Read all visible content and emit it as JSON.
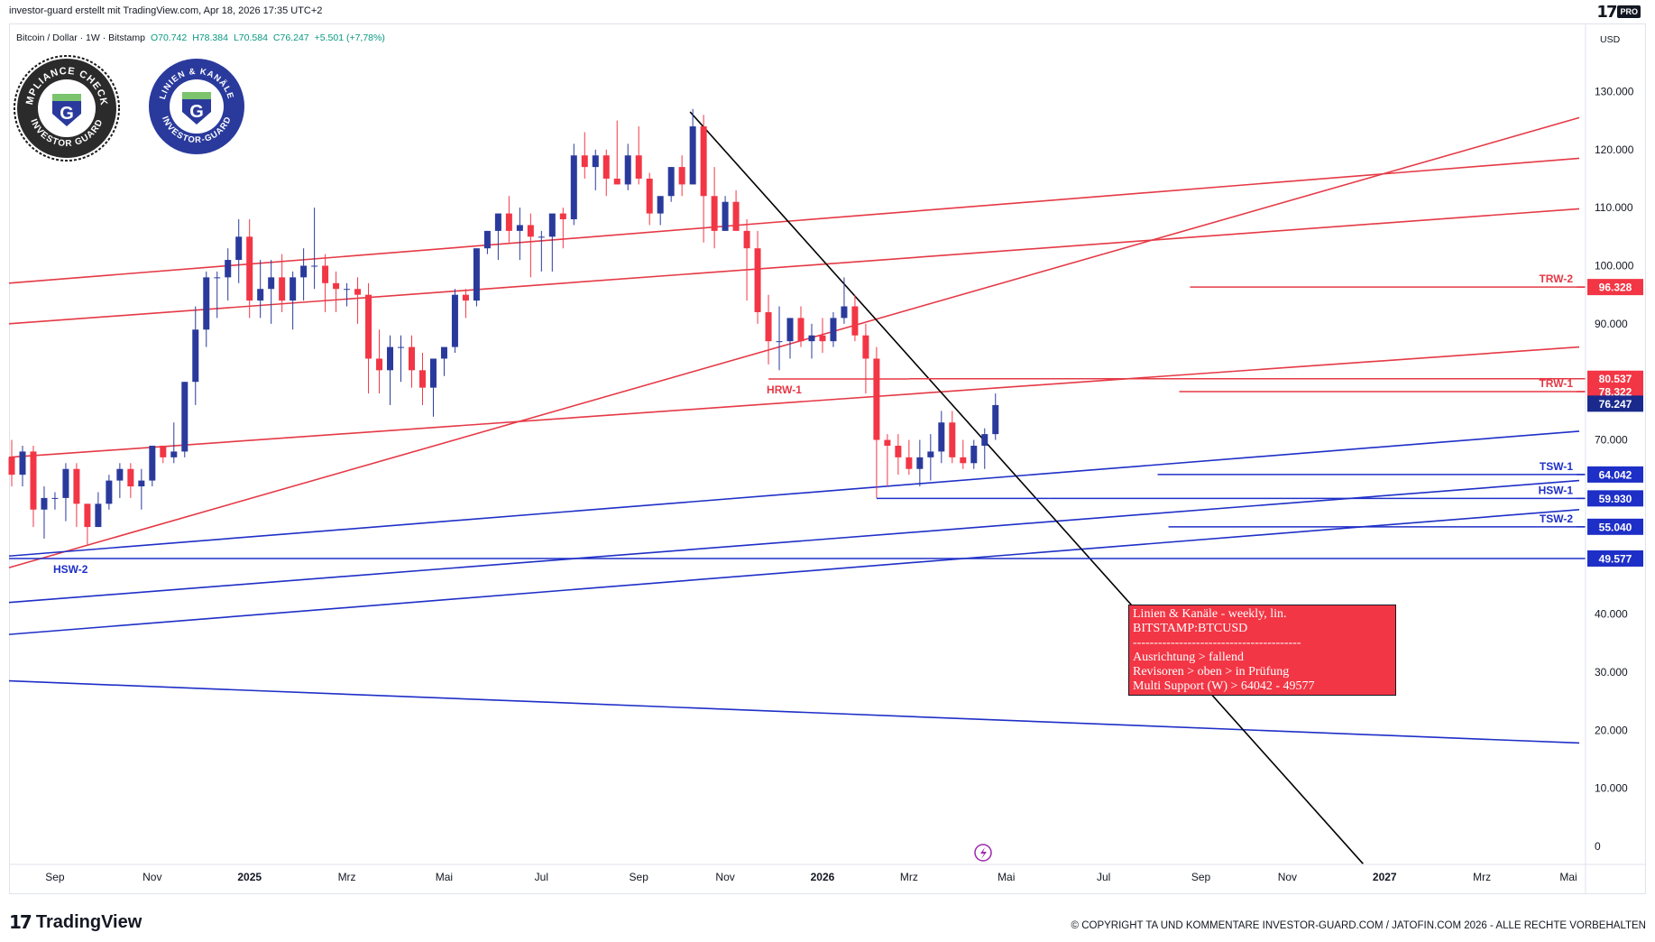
{
  "header": {
    "byline": "investor-guard erstellt mit TradingView.com, Apr 18, 2026 17:35 UTC+2",
    "brand_pro": "PRO"
  },
  "symbol": {
    "name": "Bitcoin / Dollar · 1W · Bitstamp",
    "open": "O70.742",
    "high": "H78.384",
    "low": "L70.584",
    "close": "C76.247",
    "change": "+5.501 (+7,78%)",
    "currency": "USD"
  },
  "badges": {
    "compliance_top": "COMPLIANCE CHECKED",
    "compliance_bottom": "INVESTOR GUARD",
    "linien_top": "LINIEN & KANÄLE",
    "linien_bottom": "INVESTOR-GUARD",
    "letter": "G"
  },
  "info_box": {
    "line1": "Linien & Kanäle - weekly, lin.",
    "line2": "BITSTAMP:BTCUSD",
    "separator": "----------------------------------------",
    "line3": "Ausrichtung > fallend",
    "line4": "Revisoren > oben > in Prüfung",
    "line5": "Multi Support (W) > 64042 - 49577"
  },
  "footer": {
    "brand": "TradingView",
    "copyright": "© COPYRIGHT TA UND KOMMENTARE INVESTOR-GUARD.COM / JATOFIN.COM 2026 - ALLE RECHTE VORBEHALTEN"
  },
  "colors": {
    "up": "#2a3a9c",
    "down": "#f23645",
    "resistance": "#e53945",
    "support": "#1e2fc7",
    "trendline": "#000000"
  },
  "chart_data": {
    "type": "candlestick",
    "y_axis_ticks": [
      "130.000",
      "120.000",
      "110.000",
      "100.000",
      "90.000",
      "80.000",
      "70.000",
      "40.000",
      "30.000",
      "20.000",
      "10.000",
      "0"
    ],
    "y_tick_values": [
      130000,
      120000,
      110000,
      100000,
      90000,
      80000,
      70000,
      40000,
      30000,
      20000,
      10000,
      0
    ],
    "ylim": [
      0,
      135000
    ],
    "x_axis_ticks": [
      "Sep",
      "Nov",
      "2025",
      "Mrz",
      "Mai",
      "Jul",
      "Sep",
      "Nov",
      "2026",
      "Mrz",
      "Mai",
      "Jul",
      "Sep",
      "Nov",
      "2027",
      "Mrz",
      "Mai"
    ],
    "x_tick_weeks": [
      4,
      13,
      22,
      31,
      40,
      49,
      58,
      66,
      75,
      83,
      92,
      101,
      110,
      118,
      127,
      136,
      144
    ],
    "x_range_weeks": [
      0,
      146
    ],
    "first_week": "2024-07-29",
    "candles": [
      [
        0,
        67,
        70,
        62,
        64
      ],
      [
        1,
        64,
        69,
        62,
        68
      ],
      [
        2,
        68,
        69,
        55,
        58
      ],
      [
        3,
        58,
        62,
        53,
        60
      ],
      [
        4,
        60,
        61,
        58,
        60
      ],
      [
        5,
        60,
        66,
        56,
        65
      ],
      [
        6,
        65,
        66,
        55,
        59
      ],
      [
        7,
        59,
        59,
        52,
        55
      ],
      [
        8,
        55,
        61,
        55,
        59
      ],
      [
        9,
        59,
        64,
        58,
        63
      ],
      [
        10,
        63,
        66,
        60,
        65
      ],
      [
        11,
        65,
        66,
        60,
        62
      ],
      [
        12,
        62,
        65,
        58,
        63
      ],
      [
        13,
        63,
        69,
        62,
        69
      ],
      [
        14,
        69,
        69,
        66,
        67
      ],
      [
        15,
        67,
        73,
        66,
        68
      ],
      [
        16,
        68,
        80,
        67,
        80
      ],
      [
        17,
        80,
        93,
        76,
        89
      ],
      [
        18,
        89,
        99,
        86,
        98
      ],
      [
        19,
        98,
        99,
        91,
        98
      ],
      [
        20,
        98,
        103,
        94,
        101
      ],
      [
        21,
        101,
        108,
        97,
        105
      ],
      [
        22,
        105,
        108,
        91,
        94
      ],
      [
        23,
        94,
        101,
        91,
        96
      ],
      [
        24,
        96,
        101,
        90,
        98
      ],
      [
        25,
        98,
        102,
        92,
        94
      ],
      [
        26,
        94,
        99,
        89,
        98
      ],
      [
        27,
        98,
        103,
        94,
        100
      ],
      [
        28,
        100,
        110,
        96,
        100
      ],
      [
        29,
        100,
        102,
        92,
        97
      ],
      [
        30,
        97,
        99,
        92,
        96
      ],
      [
        31,
        96,
        97,
        93,
        96
      ],
      [
        32,
        96,
        98,
        90,
        95
      ],
      [
        33,
        95,
        97,
        78,
        84
      ],
      [
        34,
        84,
        89,
        78,
        82
      ],
      [
        35,
        82,
        88,
        76,
        86
      ],
      [
        36,
        86,
        88,
        80,
        86
      ],
      [
        37,
        86,
        88,
        79,
        82
      ],
      [
        38,
        82,
        85,
        76,
        79
      ],
      [
        39,
        79,
        84,
        74,
        84
      ],
      [
        40,
        84,
        86,
        81,
        86
      ],
      [
        41,
        86,
        96,
        85,
        95
      ],
      [
        42,
        95,
        96,
        91,
        94
      ],
      [
        43,
        94,
        103,
        93,
        103
      ],
      [
        44,
        103,
        106,
        102,
        106
      ],
      [
        45,
        106,
        109,
        101,
        109
      ],
      [
        46,
        109,
        112,
        104,
        106
      ],
      [
        47,
        106,
        110,
        101,
        107
      ],
      [
        48,
        107,
        109,
        98,
        105
      ],
      [
        49,
        105,
        106,
        99,
        105
      ],
      [
        50,
        105,
        108,
        99,
        109
      ],
      [
        51,
        109,
        110,
        103,
        108
      ],
      [
        52,
        108,
        121,
        107,
        119
      ],
      [
        53,
        119,
        123,
        115,
        117
      ],
      [
        54,
        117,
        120,
        113,
        119
      ],
      [
        55,
        119,
        120,
        112,
        115
      ],
      [
        56,
        115,
        125,
        114,
        114
      ],
      [
        57,
        114,
        121,
        113,
        119
      ],
      [
        58,
        119,
        124,
        114,
        115
      ],
      [
        59,
        115,
        116,
        107,
        109
      ],
      [
        60,
        109,
        112,
        107,
        112
      ],
      [
        61,
        112,
        117,
        111,
        117
      ],
      [
        62,
        117,
        119,
        112,
        114
      ],
      [
        63,
        114,
        127,
        114,
        124
      ],
      [
        64,
        124,
        126,
        104,
        112
      ],
      [
        65,
        112,
        117,
        103,
        106
      ],
      [
        66,
        106,
        112,
        106,
        111
      ],
      [
        67,
        111,
        113,
        108,
        106
      ],
      [
        68,
        106,
        108,
        94,
        103
      ],
      [
        69,
        103,
        106,
        90,
        92
      ],
      [
        70,
        92,
        95,
        83,
        87
      ],
      [
        71,
        87,
        93,
        82,
        87
      ],
      [
        72,
        87,
        90,
        84,
        91
      ],
      [
        73,
        91,
        93,
        86,
        87
      ],
      [
        74,
        87,
        90,
        84,
        88
      ],
      [
        75,
        88,
        91,
        85,
        87
      ],
      [
        76,
        87,
        92,
        86,
        91
      ],
      [
        77,
        91,
        98,
        90,
        93
      ],
      [
        78,
        93,
        95,
        87,
        88
      ],
      [
        79,
        88,
        90,
        78,
        84
      ],
      [
        80,
        84,
        86,
        60,
        70
      ],
      [
        81,
        70,
        71,
        62,
        69
      ],
      [
        82,
        69,
        71,
        64,
        67
      ],
      [
        83,
        67,
        70,
        64,
        65
      ],
      [
        84,
        65,
        70,
        62,
        67
      ],
      [
        85,
        67,
        71,
        63,
        68
      ],
      [
        86,
        68,
        75,
        66,
        73
      ],
      [
        87,
        73,
        75,
        66,
        67
      ],
      [
        88,
        67,
        70,
        65,
        66
      ],
      [
        89,
        66,
        70,
        65,
        69
      ],
      [
        90,
        69,
        72,
        65,
        71
      ],
      [
        91,
        71,
        78,
        70,
        76
      ]
    ],
    "candle_units": "thousand USD",
    "candle_fields": [
      "week",
      "open",
      "high",
      "low",
      "close"
    ],
    "price_levels": [
      {
        "label": "TRW-2",
        "value": "96.328",
        "kind": "resistance"
      },
      {
        "label": "",
        "value": "80.537",
        "kind": "resistance"
      },
      {
        "label": "TRW-1",
        "value": "78.322",
        "kind": "resistance"
      },
      {
        "label": "",
        "value": "76.247",
        "kind": "current"
      },
      {
        "label": "TSW-1",
        "value": "64.042",
        "kind": "support"
      },
      {
        "label": "HSW-1",
        "value": "59.930",
        "kind": "support"
      },
      {
        "label": "TSW-2",
        "value": "55.040",
        "kind": "support"
      },
      {
        "label": "",
        "value": "49.577",
        "kind": "support"
      }
    ],
    "side_labels": [
      {
        "label": "HRW-1",
        "value": 80.5,
        "kind": "resistance",
        "week": 70
      },
      {
        "label": "HSW-2",
        "value": 49.6,
        "kind": "support",
        "week": 4
      }
    ],
    "trendlines": [
      {
        "kind": "resistance",
        "from": [
          0,
          97
        ],
        "to": [
          145,
          118.5
        ]
      },
      {
        "kind": "resistance",
        "from": [
          0,
          90
        ],
        "to": [
          145,
          109.8
        ]
      },
      {
        "kind": "resistance",
        "from": [
          0,
          48
        ],
        "to": [
          145,
          125.5
        ]
      },
      {
        "kind": "resistance",
        "from": [
          0,
          67
        ],
        "to": [
          145,
          86
        ]
      },
      {
        "kind": "support",
        "from": [
          0,
          50
        ],
        "to": [
          145,
          71.5
        ]
      },
      {
        "kind": "support",
        "from": [
          0,
          42
        ],
        "to": [
          145,
          63
        ]
      },
      {
        "kind": "support",
        "from": [
          0,
          36.5
        ],
        "to": [
          145,
          58
        ]
      },
      {
        "kind": "support",
        "from": [
          0,
          28.5
        ],
        "to": [
          145,
          17.8
        ]
      },
      {
        "kind": "trend",
        "from": [
          63,
          126.5
        ],
        "to": [
          125,
          -3
        ]
      }
    ]
  }
}
